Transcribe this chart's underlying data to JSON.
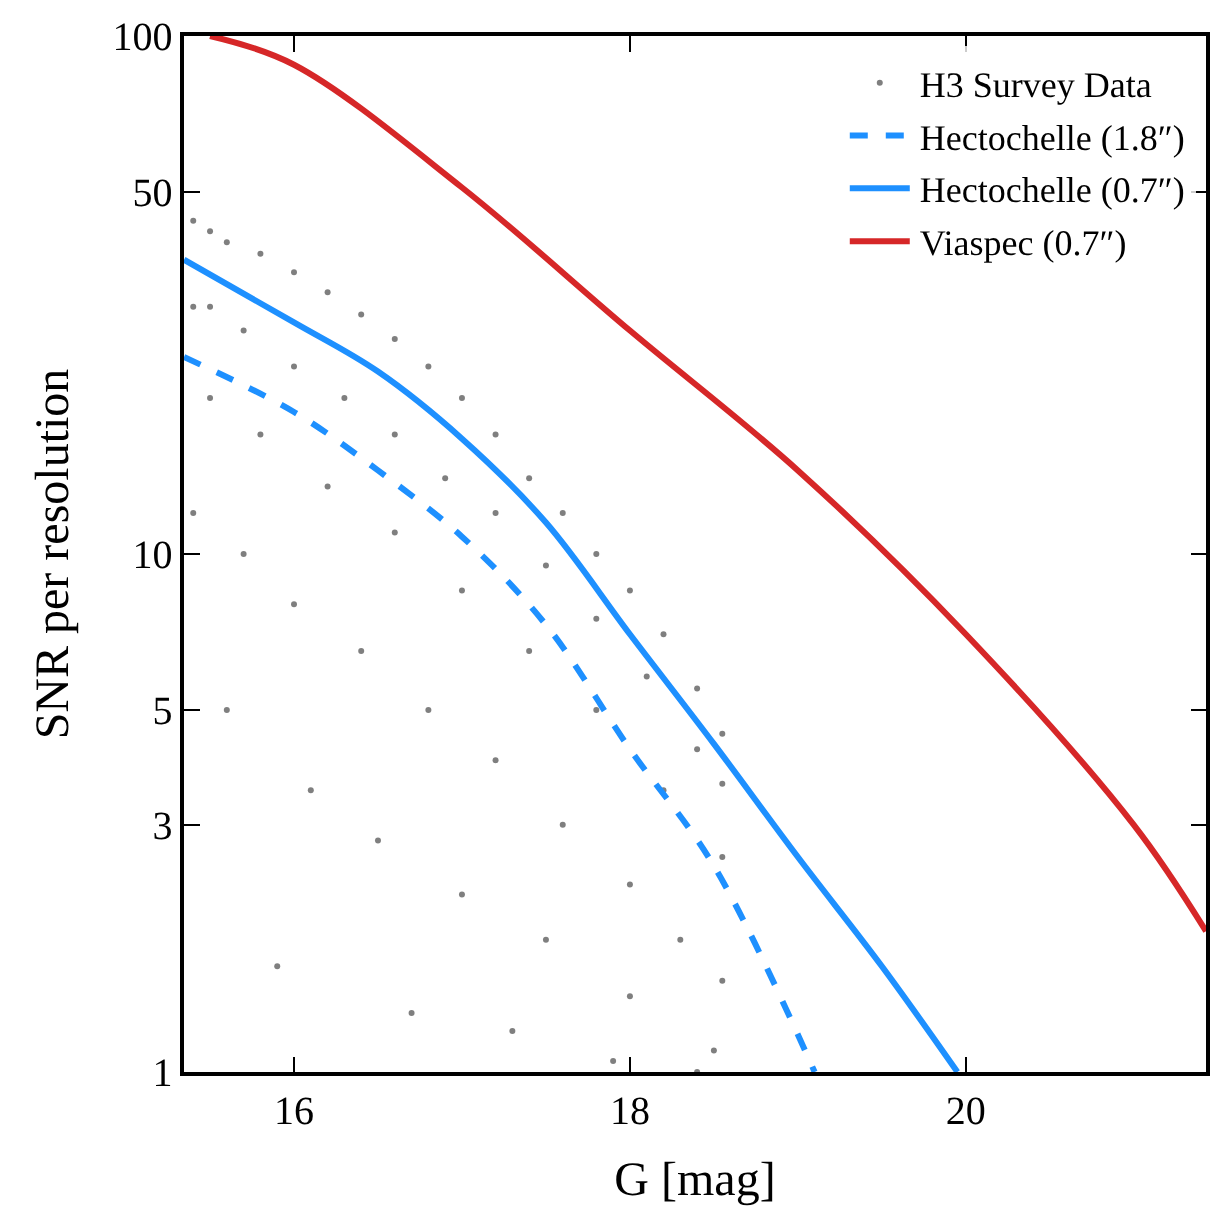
{
  "chart_data": {
    "type": "line",
    "xlabel": "G [mag]",
    "ylabel": "SNR per resolution",
    "log": "y",
    "xlim": [
      15.345,
      21.43
    ],
    "xticks": [
      16,
      18,
      20
    ],
    "ylim": [
      1,
      100
    ],
    "yticks": [
      1,
      3,
      5,
      10,
      50,
      100
    ],
    "legend": "top right",
    "series": [
      {
        "name": "H3 Survey Data",
        "type": "scatter",
        "color": "#000000",
        "marker": "circle",
        "x": [
          15.4,
          15.4,
          15.5,
          15.6,
          15.8,
          16.0,
          16.2,
          16.4,
          16.6,
          16.8,
          17.0,
          17.2,
          17.4,
          17.6,
          17.8,
          18.0,
          18.2,
          18.4,
          18.55,
          15.5,
          15.7,
          16.0,
          16.3,
          16.6,
          16.9,
          17.2,
          17.5,
          17.8,
          18.1,
          18.4,
          18.55,
          15.5,
          15.8,
          16.2,
          16.6,
          17.0,
          17.4,
          17.8,
          18.2,
          18.55,
          15.4,
          15.7,
          16.0,
          16.4,
          16.8,
          17.2,
          17.6,
          18.0,
          18.3,
          18.55,
          15.6,
          16.1,
          16.5,
          17.0,
          17.5,
          18.0,
          18.5,
          15.9,
          16.7,
          17.3,
          17.9,
          18.4
        ],
        "values": [
          44,
          30,
          42,
          40,
          38,
          35,
          32,
          29,
          26,
          23,
          20,
          17,
          14,
          12,
          10,
          8.5,
          7,
          5.5,
          4.5,
          30,
          27,
          23,
          20,
          17,
          14,
          12,
          9.5,
          7.5,
          5.8,
          4.2,
          3.6,
          20,
          17,
          13.5,
          11,
          8.5,
          6.5,
          5,
          3.5,
          2.6,
          12,
          10,
          8,
          6.5,
          5,
          4,
          3,
          2.3,
          1.8,
          1.5,
          5,
          3.5,
          2.8,
          2.2,
          1.8,
          1.4,
          1.1,
          1.6,
          1.3,
          1.2,
          1.05,
          1.0
        ]
      },
      {
        "name": "Hectochelle (1.8″)",
        "color": "#1e90ff",
        "line_style": "dashed",
        "x": [
          15.345,
          16,
          16.5,
          17,
          17.5,
          18,
          18.5,
          19.1
        ],
        "values": [
          24,
          18.8,
          14.5,
          10.8,
          7.3,
          4.2,
          2.5,
          1
        ]
      },
      {
        "name": "Hectochelle (0.7″)",
        "color": "#1e90ff",
        "line_style": "solid",
        "x": [
          15.345,
          16,
          16.5,
          17,
          17.5,
          18,
          18.5,
          19,
          19.5,
          19.95
        ],
        "values": [
          37,
          28,
          22.5,
          16.7,
          11.5,
          7,
          4.3,
          2.6,
          1.6,
          1
        ]
      },
      {
        "name": "Viaspec (0.7″)",
        "color": "#d62728",
        "line_style": "solid",
        "x": [
          15.5,
          16,
          17,
          18,
          19,
          20,
          21,
          21.43
        ],
        "values": [
          100,
          88,
          51,
          27,
          14.5,
          7,
          3,
          1.87
        ]
      }
    ]
  }
}
